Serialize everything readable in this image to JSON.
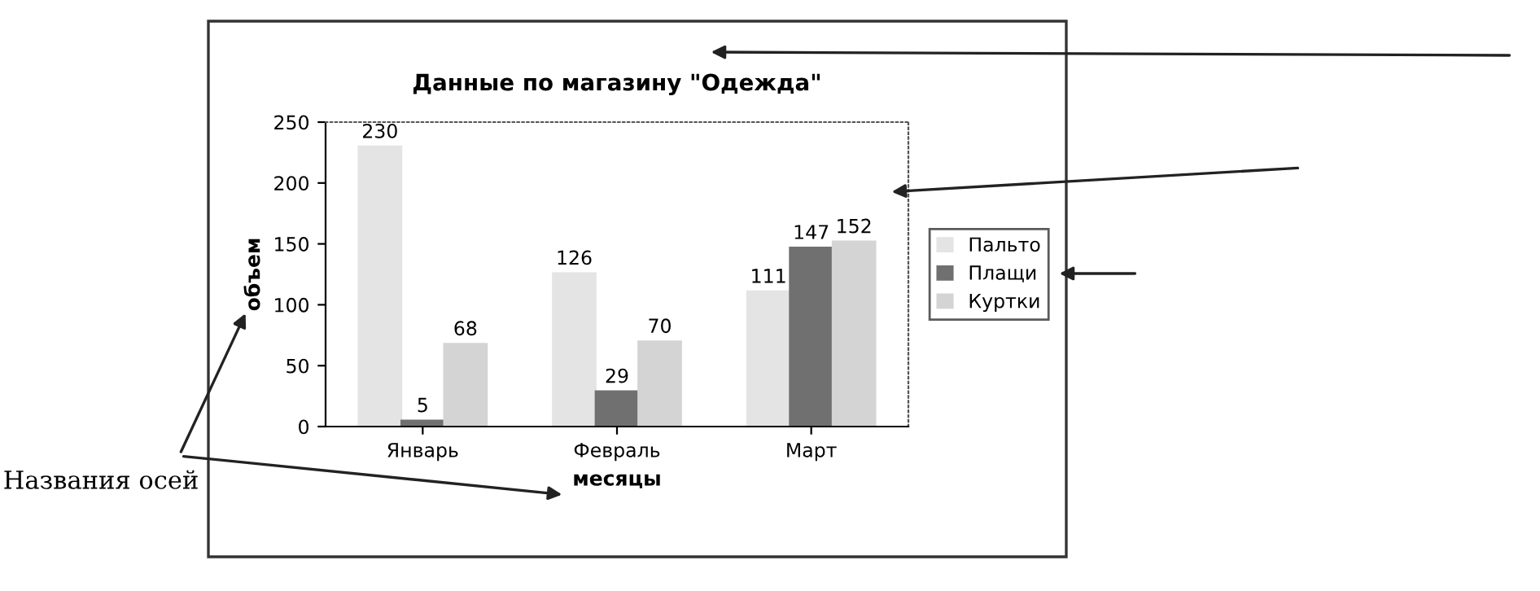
{
  "chart_data": {
    "type": "bar",
    "title": "Данные по магазину \"Одежда\"",
    "xlabel": "месяцы",
    "ylabel": "объем",
    "categories": [
      "Январь",
      "Февраль",
      "Март"
    ],
    "series": [
      {
        "name": "Пальто",
        "color": "#e4e4e4",
        "values": [
          230,
          126,
          111
        ]
      },
      {
        "name": "Плащи",
        "color": "#707070",
        "values": [
          5,
          29,
          147
        ]
      },
      {
        "name": "Куртки",
        "color": "#d4d4d4",
        "values": [
          68,
          70,
          152
        ]
      }
    ],
    "ylim": [
      0,
      250
    ],
    "yticks": [
      0,
      50,
      100,
      150,
      200,
      250
    ],
    "grid": false,
    "legend": "right",
    "data_labels": true,
    "annotations": [
      "Названия осей"
    ]
  }
}
